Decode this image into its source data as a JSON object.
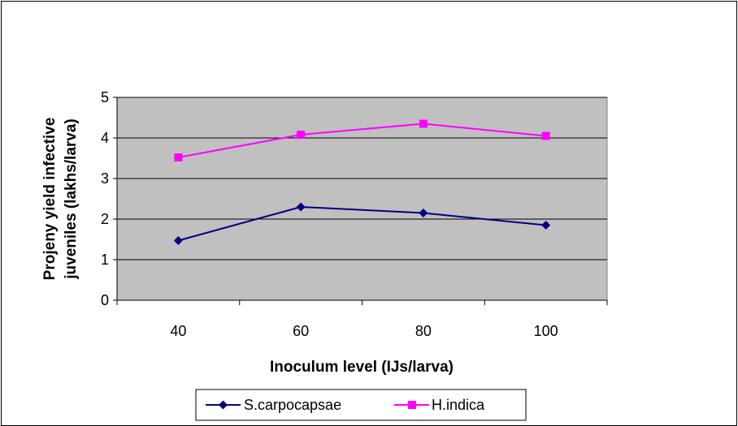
{
  "chart_data": {
    "type": "line",
    "title": "",
    "xlabel": "Inoculum level (IJs/larva)",
    "ylabel_lines": [
      "Projeny yield infective",
      "juveniles (lakhs/larva)"
    ],
    "categories": [
      "40",
      "60",
      "80",
      "100"
    ],
    "ylim": [
      0,
      5
    ],
    "yticks": [
      "0",
      "1",
      "2",
      "3",
      "4",
      "5"
    ],
    "grid": true,
    "plot_background": "#c0c0c0",
    "legend_position": "bottom",
    "series": [
      {
        "name": "S.carpocapsae",
        "values": [
          1.47,
          2.3,
          2.15,
          1.85
        ],
        "color": "#000080",
        "marker": "diamond"
      },
      {
        "name": "H.indica",
        "values": [
          3.52,
          4.08,
          4.35,
          4.05
        ],
        "color": "#ff00ff",
        "marker": "square"
      }
    ]
  }
}
